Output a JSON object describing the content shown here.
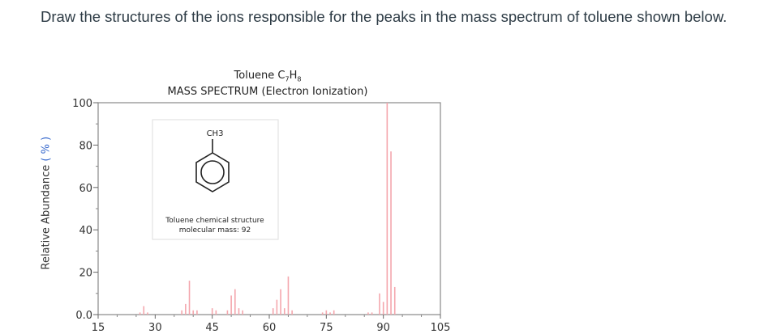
{
  "question": {
    "text": "Draw the structures of the ions responsible for the peaks in the mass spectrum of toluene shown below."
  },
  "chart_data": {
    "type": "bar",
    "title": "Toluene C7H8",
    "subtitle": "MASS SPECTRUM (Electron Ionization)",
    "xlabel": "",
    "ylabel": "Relative Abundance (%)",
    "xlim": [
      15,
      105
    ],
    "ylim": [
      0,
      100
    ],
    "x_ticks": [
      15,
      30,
      45,
      60,
      75,
      90,
      105
    ],
    "y_ticks": [
      "0.0",
      "20",
      "40",
      "60",
      "80",
      "100"
    ],
    "grid": false,
    "bar_color": "#f4a6ad",
    "x": [
      26,
      27,
      28,
      37,
      38,
      39,
      40,
      41,
      45,
      46,
      49,
      50,
      51,
      52,
      53,
      61,
      62,
      63,
      64,
      65,
      66,
      74,
      75,
      76,
      77,
      86,
      87,
      89,
      90,
      91,
      92,
      93
    ],
    "values": [
      1,
      4,
      1,
      2,
      5,
      16,
      2,
      2,
      3,
      2,
      2,
      9,
      12,
      3,
      2,
      3,
      7,
      12,
      3,
      18,
      2,
      1,
      2,
      1,
      2,
      1,
      1,
      10,
      6,
      100,
      77,
      13
    ]
  },
  "inset": {
    "substituent": "CH3",
    "caption_line1": "Toluene chemical structure",
    "caption_line2": "molecular mass: 92"
  },
  "labels": {
    "title_main": "Toluene  C",
    "title_sub7": "7",
    "title_H": "H",
    "title_sub8": "8",
    "subtitle": "MASS SPECTRUM (Electron Ionization)",
    "ylabel_main": "Relative Abundance ",
    "ylabel_pct": "( % )"
  }
}
